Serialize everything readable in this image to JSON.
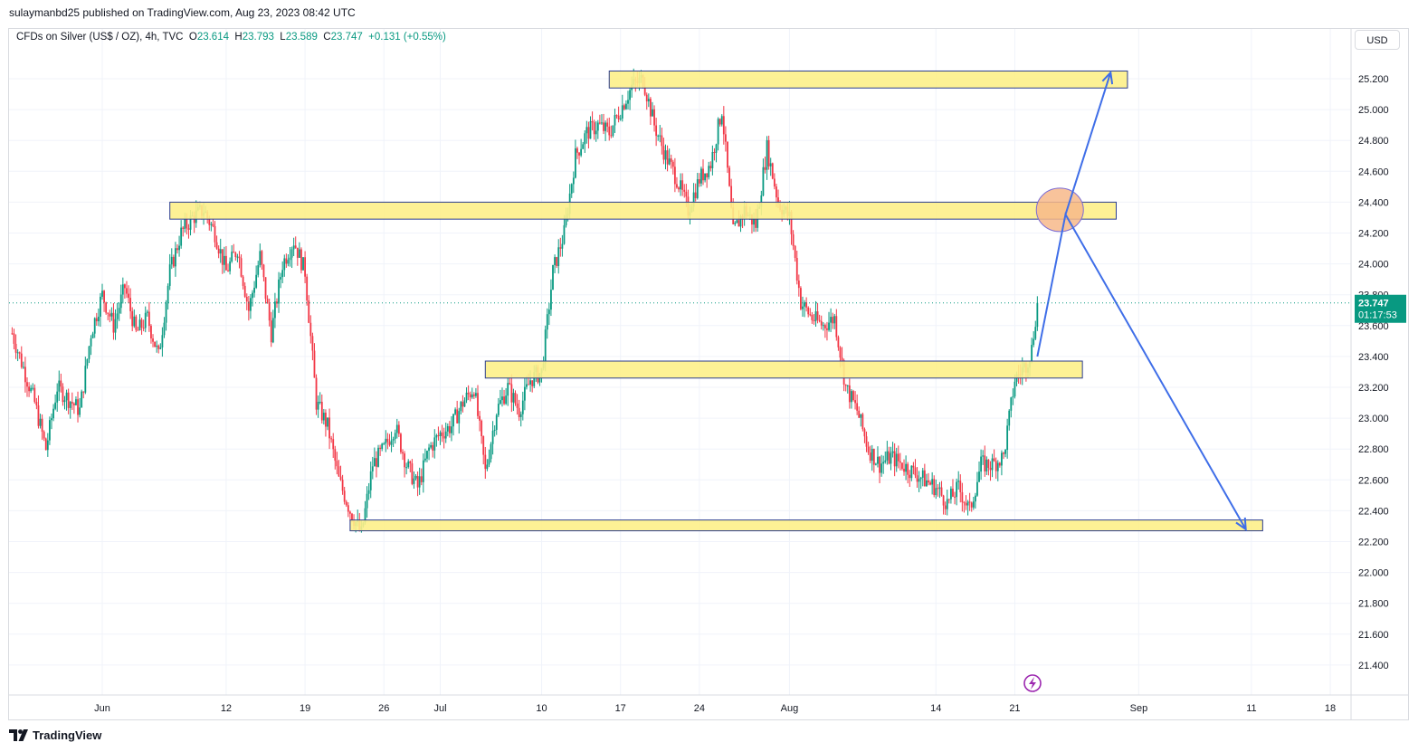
{
  "header": {
    "published_by": "sulaymanbd25 published on TradingView.com, Aug 23, 2023 08:42 UTC"
  },
  "legend": {
    "symbol": "CFDs on Silver (US$ / OZ), 4h, TVC",
    "open_label": "O",
    "open": "23.614",
    "high_label": "H",
    "high": "23.793",
    "low_label": "L",
    "low": "23.589",
    "close_label": "C",
    "close": "23.747",
    "change": "+0.131 (+0.55%)"
  },
  "currency_button": "USD",
  "price_tag": {
    "price": "23.747",
    "countdown": "01:17:53"
  },
  "footer": {
    "brand": "TradingView"
  },
  "colors": {
    "up": "#089981",
    "down": "#f23645",
    "zone_fill": "#fdf08a",
    "zone_border": "#2c3e8f",
    "arrow": "#3f6ee8",
    "circle_fill": "#f7b98a",
    "circle_stroke": "#7a6bd6"
  },
  "chart_data": {
    "type": "candlestick",
    "timeframe": "4h",
    "y_ticks": [
      "21.400",
      "21.600",
      "21.800",
      "22.000",
      "22.200",
      "22.400",
      "22.600",
      "22.800",
      "23.000",
      "23.200",
      "23.400",
      "23.600",
      "23.800",
      "24.000",
      "24.200",
      "24.400",
      "24.600",
      "24.800",
      "25.000",
      "25.200"
    ],
    "x_ticks": [
      {
        "label": "Jun",
        "day": 0
      },
      {
        "label": "12",
        "day": 11
      },
      {
        "label": "19",
        "day": 18
      },
      {
        "label": "26",
        "day": 25
      },
      {
        "label": "Jul",
        "day": 30
      },
      {
        "label": "10",
        "day": 39
      },
      {
        "label": "17",
        "day": 46
      },
      {
        "label": "24",
        "day": 53
      },
      {
        "label": "Aug",
        "day": 61
      },
      {
        "label": "14",
        "day": 74
      },
      {
        "label": "21",
        "day": 81
      },
      {
        "label": "Sep",
        "day": 92
      },
      {
        "label": "11",
        "day": 102
      },
      {
        "label": "18",
        "day": 109
      }
    ],
    "last_price": 23.747,
    "anchors": [
      {
        "day": -8,
        "price": 23.55
      },
      {
        "day": -6,
        "price": 23.1
      },
      {
        "day": -5,
        "price": 22.8
      },
      {
        "day": -4,
        "price": 23.2
      },
      {
        "day": -2,
        "price": 23.05
      },
      {
        "day": -1,
        "price": 23.55
      },
      {
        "day": 0,
        "price": 23.8
      },
      {
        "day": 1,
        "price": 23.6
      },
      {
        "day": 2,
        "price": 23.85
      },
      {
        "day": 3,
        "price": 23.55
      },
      {
        "day": 4,
        "price": 23.65
      },
      {
        "day": 5,
        "price": 23.4
      },
      {
        "day": 6,
        "price": 23.95
      },
      {
        "day": 7,
        "price": 24.2
      },
      {
        "day": 8,
        "price": 24.3
      },
      {
        "day": 9,
        "price": 24.35
      },
      {
        "day": 10,
        "price": 24.2
      },
      {
        "day": 11,
        "price": 23.95
      },
      {
        "day": 12,
        "price": 24.1
      },
      {
        "day": 13,
        "price": 23.7
      },
      {
        "day": 14,
        "price": 24.05
      },
      {
        "day": 15,
        "price": 23.55
      },
      {
        "day": 16,
        "price": 24.0
      },
      {
        "day": 17,
        "price": 24.15
      },
      {
        "day": 18,
        "price": 23.95
      },
      {
        "day": 19,
        "price": 23.1
      },
      {
        "day": 20,
        "price": 22.95
      },
      {
        "day": 21,
        "price": 22.6
      },
      {
        "day": 22,
        "price": 22.4
      },
      {
        "day": 23,
        "price": 22.25
      },
      {
        "day": 24,
        "price": 22.7
      },
      {
        "day": 25,
        "price": 22.8
      },
      {
        "day": 26,
        "price": 22.95
      },
      {
        "day": 27,
        "price": 22.7
      },
      {
        "day": 28,
        "price": 22.55
      },
      {
        "day": 29,
        "price": 22.8
      },
      {
        "day": 30,
        "price": 22.9
      },
      {
        "day": 31,
        "price": 22.95
      },
      {
        "day": 32,
        "price": 23.1
      },
      {
        "day": 33,
        "price": 23.2
      },
      {
        "day": 34,
        "price": 22.65
      },
      {
        "day": 35,
        "price": 23.05
      },
      {
        "day": 36,
        "price": 23.2
      },
      {
        "day": 37,
        "price": 23.05
      },
      {
        "day": 38,
        "price": 23.25
      },
      {
        "day": 39,
        "price": 23.3
      },
      {
        "day": 40,
        "price": 23.95
      },
      {
        "day": 41,
        "price": 24.2
      },
      {
        "day": 42,
        "price": 24.7
      },
      {
        "day": 43,
        "price": 24.85
      },
      {
        "day": 44,
        "price": 24.9
      },
      {
        "day": 45,
        "price": 24.85
      },
      {
        "day": 46,
        "price": 25.0
      },
      {
        "day": 47,
        "price": 25.15
      },
      {
        "day": 48,
        "price": 25.2
      },
      {
        "day": 49,
        "price": 24.9
      },
      {
        "day": 50,
        "price": 24.7
      },
      {
        "day": 51,
        "price": 24.55
      },
      {
        "day": 52,
        "price": 24.35
      },
      {
        "day": 53,
        "price": 24.55
      },
      {
        "day": 54,
        "price": 24.65
      },
      {
        "day": 55,
        "price": 25.0
      },
      {
        "day": 56,
        "price": 24.2
      },
      {
        "day": 57,
        "price": 24.35
      },
      {
        "day": 58,
        "price": 24.25
      },
      {
        "day": 59,
        "price": 24.75
      },
      {
        "day": 60,
        "price": 24.4
      },
      {
        "day": 61,
        "price": 24.3
      },
      {
        "day": 62,
        "price": 23.75
      },
      {
        "day": 63,
        "price": 23.65
      },
      {
        "day": 64,
        "price": 23.6
      },
      {
        "day": 65,
        "price": 23.65
      },
      {
        "day": 66,
        "price": 23.2
      },
      {
        "day": 67,
        "price": 23.05
      },
      {
        "day": 68,
        "price": 22.8
      },
      {
        "day": 69,
        "price": 22.7
      },
      {
        "day": 70,
        "price": 22.75
      },
      {
        "day": 71,
        "price": 22.7
      },
      {
        "day": 72,
        "price": 22.65
      },
      {
        "day": 73,
        "price": 22.6
      },
      {
        "day": 74,
        "price": 22.55
      },
      {
        "day": 75,
        "price": 22.45
      },
      {
        "day": 76,
        "price": 22.55
      },
      {
        "day": 77,
        "price": 22.4
      },
      {
        "day": 78,
        "price": 22.7
      },
      {
        "day": 79,
        "price": 22.7
      },
      {
        "day": 80,
        "price": 22.75
      },
      {
        "day": 81,
        "price": 23.25
      },
      {
        "day": 82,
        "price": 23.35
      },
      {
        "day": 82.5,
        "price": 23.45
      },
      {
        "day": 83,
        "price": 23.747
      }
    ],
    "zones": [
      {
        "name": "zone-25.2",
        "from_day": 45,
        "to_day": 91,
        "price_top": 25.25,
        "price_bottom": 25.14
      },
      {
        "name": "zone-24.4",
        "from_day": 6,
        "to_day": 90,
        "price_top": 24.4,
        "price_bottom": 24.29
      },
      {
        "name": "zone-23.4",
        "from_day": 34,
        "to_day": 87,
        "price_top": 23.37,
        "price_bottom": 23.26
      },
      {
        "name": "zone-22.3",
        "from_day": 22,
        "to_day": 103,
        "price_top": 22.34,
        "price_bottom": 22.27
      }
    ],
    "projection": {
      "path": [
        {
          "day": 83,
          "price": 23.4
        },
        {
          "day": 85.5,
          "price": 24.32
        },
        {
          "day": 101.5,
          "price": 22.28
        }
      ],
      "branch": {
        "from": {
          "day": 85.5,
          "price": 24.32
        },
        "to": {
          "day": 89.5,
          "price": 25.24
        }
      },
      "target_circle": {
        "day": 85,
        "price": 24.35
      }
    }
  }
}
